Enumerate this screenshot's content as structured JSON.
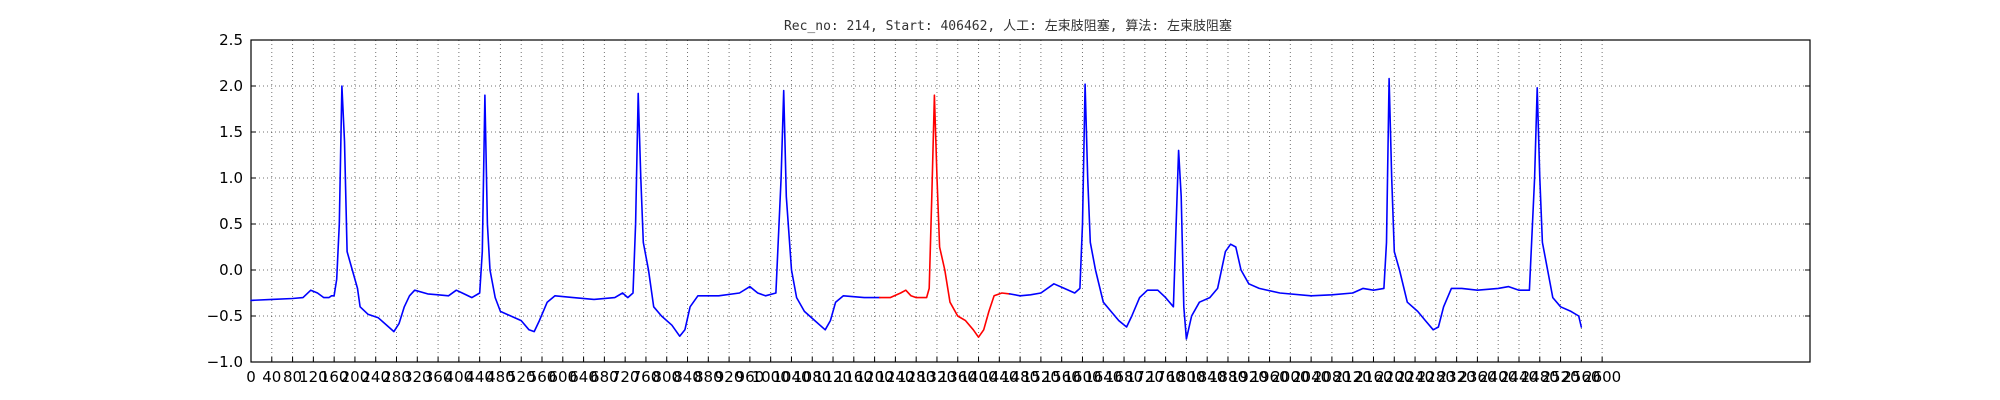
{
  "chart_data": {
    "type": "line",
    "title": "Rec_no: 214, Start: 406462, 人工: 左束肢阻塞, 算法: 左束肢阻塞",
    "xlabel": "",
    "ylabel": "",
    "xlim": [
      0,
      3000
    ],
    "ylim": [
      -1.0,
      2.5
    ],
    "grid": true,
    "x_ticks": [
      0,
      40,
      80,
      120,
      160,
      200,
      240,
      280,
      320,
      360,
      400,
      440,
      480,
      520,
      560,
      600,
      640,
      680,
      720,
      760,
      800,
      840,
      880,
      920,
      960,
      1000,
      1040,
      1080,
      1120,
      1160,
      1200,
      1240,
      1280,
      1320,
      1360,
      1400,
      1440,
      1480,
      1520,
      1560,
      1600,
      1640,
      1680,
      1720,
      1760,
      1800,
      1840,
      1880,
      1920,
      1960,
      2000,
      2040,
      2080,
      2120,
      2160,
      2200,
      2240,
      2280,
      2320,
      2360,
      2400,
      2440,
      2480,
      2520,
      2560,
      2600
    ],
    "x_tick_labels": [
      "0",
      "40",
      "80",
      "120",
      "160",
      "200",
      "240",
      "280",
      "320",
      "360",
      "400",
      "440",
      "480",
      "520",
      "560",
      "600",
      "640",
      "680",
      "720",
      "760",
      "800",
      "840",
      "880",
      "920",
      "960",
      "1000",
      "1040",
      "1080",
      "1120",
      "1160",
      "1200",
      "1240",
      "1280",
      "1320",
      "1360",
      "1400",
      "1440",
      "1480",
      "1520",
      "1560",
      "1600",
      "1640",
      "1680",
      "1720",
      "1760",
      "1800",
      "1840",
      "1880",
      "1920",
      "1960",
      "2000",
      "2040",
      "2080",
      "2120",
      "2160",
      "2200",
      "2240",
      "2280",
      "2320",
      "2360",
      "2400",
      "2440",
      "2480",
      "2520",
      "2560",
      "2600"
    ],
    "y_ticks": [
      -1.0,
      -0.5,
      0.0,
      0.5,
      1.0,
      1.5,
      2.0,
      2.5
    ],
    "y_tick_labels": [
      "−1.0",
      "−0.5",
      "0.0",
      "0.5",
      "1.0",
      "1.5",
      "2.0",
      "2.5"
    ],
    "series": [
      {
        "color": "#0000ff",
        "points": [
          [
            0,
            -0.33
          ],
          [
            40,
            -0.32
          ],
          [
            80,
            -0.31
          ],
          [
            100,
            -0.3
          ],
          [
            115,
            -0.22
          ],
          [
            128,
            -0.25
          ],
          [
            140,
            -0.3
          ],
          [
            150,
            -0.3
          ],
          [
            155,
            -0.28
          ],
          [
            160,
            -0.28
          ],
          [
            165,
            -0.1
          ],
          [
            170,
            0.5
          ],
          [
            175,
            2.0
          ],
          [
            180,
            1.4
          ],
          [
            185,
            0.2
          ],
          [
            195,
            0.0
          ],
          [
            205,
            -0.2
          ],
          [
            210,
            -0.4
          ],
          [
            225,
            -0.48
          ],
          [
            245,
            -0.52
          ],
          [
            265,
            -0.62
          ],
          [
            275,
            -0.67
          ],
          [
            285,
            -0.58
          ],
          [
            295,
            -0.4
          ],
          [
            305,
            -0.28
          ],
          [
            315,
            -0.22
          ],
          [
            340,
            -0.26
          ],
          [
            360,
            -0.27
          ],
          [
            380,
            -0.28
          ],
          [
            395,
            -0.22
          ],
          [
            410,
            -0.26
          ],
          [
            425,
            -0.3
          ],
          [
            440,
            -0.25
          ],
          [
            445,
            0.2
          ],
          [
            450,
            1.9
          ],
          [
            455,
            0.5
          ],
          [
            460,
            0.0
          ],
          [
            470,
            -0.3
          ],
          [
            480,
            -0.45
          ],
          [
            500,
            -0.5
          ],
          [
            520,
            -0.55
          ],
          [
            535,
            -0.65
          ],
          [
            545,
            -0.67
          ],
          [
            555,
            -0.55
          ],
          [
            570,
            -0.35
          ],
          [
            585,
            -0.28
          ],
          [
            620,
            -0.3
          ],
          [
            660,
            -0.32
          ],
          [
            700,
            -0.3
          ],
          [
            715,
            -0.25
          ],
          [
            725,
            -0.3
          ],
          [
            735,
            -0.25
          ],
          [
            740,
            0.5
          ],
          [
            745,
            1.92
          ],
          [
            750,
            1.0
          ],
          [
            755,
            0.3
          ],
          [
            765,
            0.0
          ],
          [
            775,
            -0.4
          ],
          [
            790,
            -0.5
          ],
          [
            810,
            -0.6
          ],
          [
            825,
            -0.72
          ],
          [
            835,
            -0.65
          ],
          [
            845,
            -0.4
          ],
          [
            860,
            -0.28
          ],
          [
            900,
            -0.28
          ],
          [
            940,
            -0.25
          ],
          [
            960,
            -0.18
          ],
          [
            975,
            -0.25
          ],
          [
            990,
            -0.28
          ],
          [
            1010,
            -0.25
          ],
          [
            1020,
            1.0
          ],
          [
            1025,
            1.95
          ],
          [
            1030,
            0.8
          ],
          [
            1040,
            0.0
          ],
          [
            1050,
            -0.3
          ],
          [
            1065,
            -0.45
          ],
          [
            1085,
            -0.55
          ],
          [
            1105,
            -0.65
          ],
          [
            1115,
            -0.55
          ],
          [
            1125,
            -0.35
          ],
          [
            1140,
            -0.28
          ],
          [
            1180,
            -0.3
          ],
          [
            1210,
            -0.3
          ]
        ]
      },
      {
        "color": "#ff0000",
        "points": [
          [
            1210,
            -0.3
          ],
          [
            1230,
            -0.3
          ],
          [
            1250,
            -0.25
          ],
          [
            1260,
            -0.22
          ],
          [
            1270,
            -0.28
          ],
          [
            1280,
            -0.3
          ],
          [
            1300,
            -0.3
          ],
          [
            1305,
            -0.2
          ],
          [
            1310,
            0.8
          ],
          [
            1315,
            1.9
          ],
          [
            1320,
            1.0
          ],
          [
            1325,
            0.25
          ],
          [
            1335,
            0.0
          ],
          [
            1345,
            -0.35
          ],
          [
            1360,
            -0.5
          ],
          [
            1375,
            -0.55
          ],
          [
            1390,
            -0.65
          ],
          [
            1400,
            -0.73
          ],
          [
            1410,
            -0.65
          ],
          [
            1420,
            -0.45
          ],
          [
            1430,
            -0.28
          ],
          [
            1445,
            -0.25
          ],
          [
            1460,
            -0.26
          ]
        ]
      },
      {
        "color": "#0000ff",
        "points": [
          [
            1460,
            -0.26
          ],
          [
            1480,
            -0.28
          ],
          [
            1500,
            -0.27
          ],
          [
            1520,
            -0.25
          ],
          [
            1545,
            -0.15
          ],
          [
            1565,
            -0.2
          ],
          [
            1585,
            -0.25
          ],
          [
            1595,
            -0.2
          ],
          [
            1600,
            0.5
          ],
          [
            1605,
            2.02
          ],
          [
            1610,
            1.0
          ],
          [
            1615,
            0.3
          ],
          [
            1625,
            0.0
          ],
          [
            1640,
            -0.35
          ],
          [
            1655,
            -0.45
          ],
          [
            1670,
            -0.55
          ],
          [
            1685,
            -0.62
          ],
          [
            1695,
            -0.5
          ],
          [
            1710,
            -0.3
          ],
          [
            1725,
            -0.22
          ],
          [
            1745,
            -0.22
          ],
          [
            1760,
            -0.3
          ],
          [
            1775,
            -0.4
          ],
          [
            1785,
            1.3
          ],
          [
            1790,
            0.8
          ],
          [
            1795,
            -0.4
          ],
          [
            1800,
            -0.75
          ],
          [
            1810,
            -0.5
          ],
          [
            1825,
            -0.35
          ],
          [
            1845,
            -0.3
          ],
          [
            1860,
            -0.2
          ],
          [
            1875,
            0.2
          ],
          [
            1885,
            0.28
          ],
          [
            1895,
            0.25
          ],
          [
            1905,
            0.0
          ],
          [
            1920,
            -0.15
          ],
          [
            1940,
            -0.2
          ],
          [
            1980,
            -0.25
          ],
          [
            2040,
            -0.28
          ],
          [
            2080,
            -0.27
          ],
          [
            2120,
            -0.25
          ],
          [
            2140,
            -0.2
          ],
          [
            2160,
            -0.22
          ],
          [
            2180,
            -0.2
          ],
          [
            2185,
            0.3
          ],
          [
            2190,
            2.08
          ],
          [
            2195,
            1.0
          ],
          [
            2200,
            0.2
          ],
          [
            2210,
            0.0
          ],
          [
            2225,
            -0.35
          ],
          [
            2245,
            -0.45
          ],
          [
            2260,
            -0.55
          ],
          [
            2275,
            -0.65
          ],
          [
            2285,
            -0.62
          ],
          [
            2295,
            -0.4
          ],
          [
            2310,
            -0.2
          ],
          [
            2330,
            -0.2
          ],
          [
            2360,
            -0.22
          ],
          [
            2400,
            -0.2
          ],
          [
            2420,
            -0.18
          ],
          [
            2440,
            -0.22
          ],
          [
            2460,
            -0.22
          ],
          [
            2470,
            1.0
          ],
          [
            2475,
            1.98
          ],
          [
            2480,
            1.0
          ],
          [
            2485,
            0.3
          ],
          [
            2495,
            0.0
          ],
          [
            2505,
            -0.3
          ],
          [
            2520,
            -0.4
          ],
          [
            2540,
            -0.45
          ],
          [
            2555,
            -0.5
          ],
          [
            2560,
            -0.62
          ]
        ]
      }
    ]
  }
}
